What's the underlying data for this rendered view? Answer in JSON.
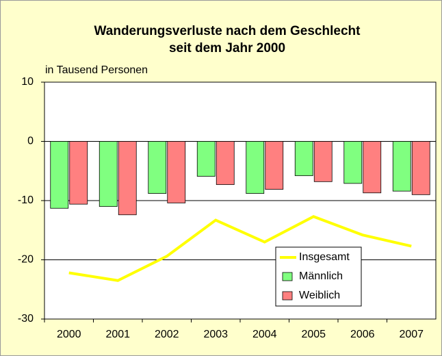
{
  "chart_data": {
    "type": "bar",
    "title": [
      "Wanderungsverluste nach dem Geschlecht",
      "seit dem Jahr 2000"
    ],
    "y_label": "in Tausend Personen",
    "categories": [
      "2000",
      "2001",
      "2002",
      "2003",
      "2004",
      "2005",
      "2006",
      "2007"
    ],
    "series": [
      {
        "name": "Insgesamt",
        "type": "line",
        "color": "#ffff00",
        "values": [
          -22.2,
          -23.5,
          -19.4,
          -13.3,
          -17.0,
          -12.7,
          -15.8,
          -17.7
        ]
      },
      {
        "name": "Männlich",
        "type": "bar",
        "color": "#80ff80",
        "values": [
          -11.3,
          -11.0,
          -8.8,
          -5.9,
          -8.8,
          -5.8,
          -7.1,
          -8.4
        ]
      },
      {
        "name": "Weiblich",
        "type": "bar",
        "color": "#ff8080",
        "values": [
          -10.6,
          -12.4,
          -10.4,
          -7.3,
          -8.1,
          -6.8,
          -8.7,
          -9.0
        ]
      }
    ],
    "ylim": [
      -30,
      10
    ],
    "yticks": [
      10,
      0,
      -10,
      -20,
      -30
    ],
    "grid": true,
    "legend": "lower right"
  }
}
